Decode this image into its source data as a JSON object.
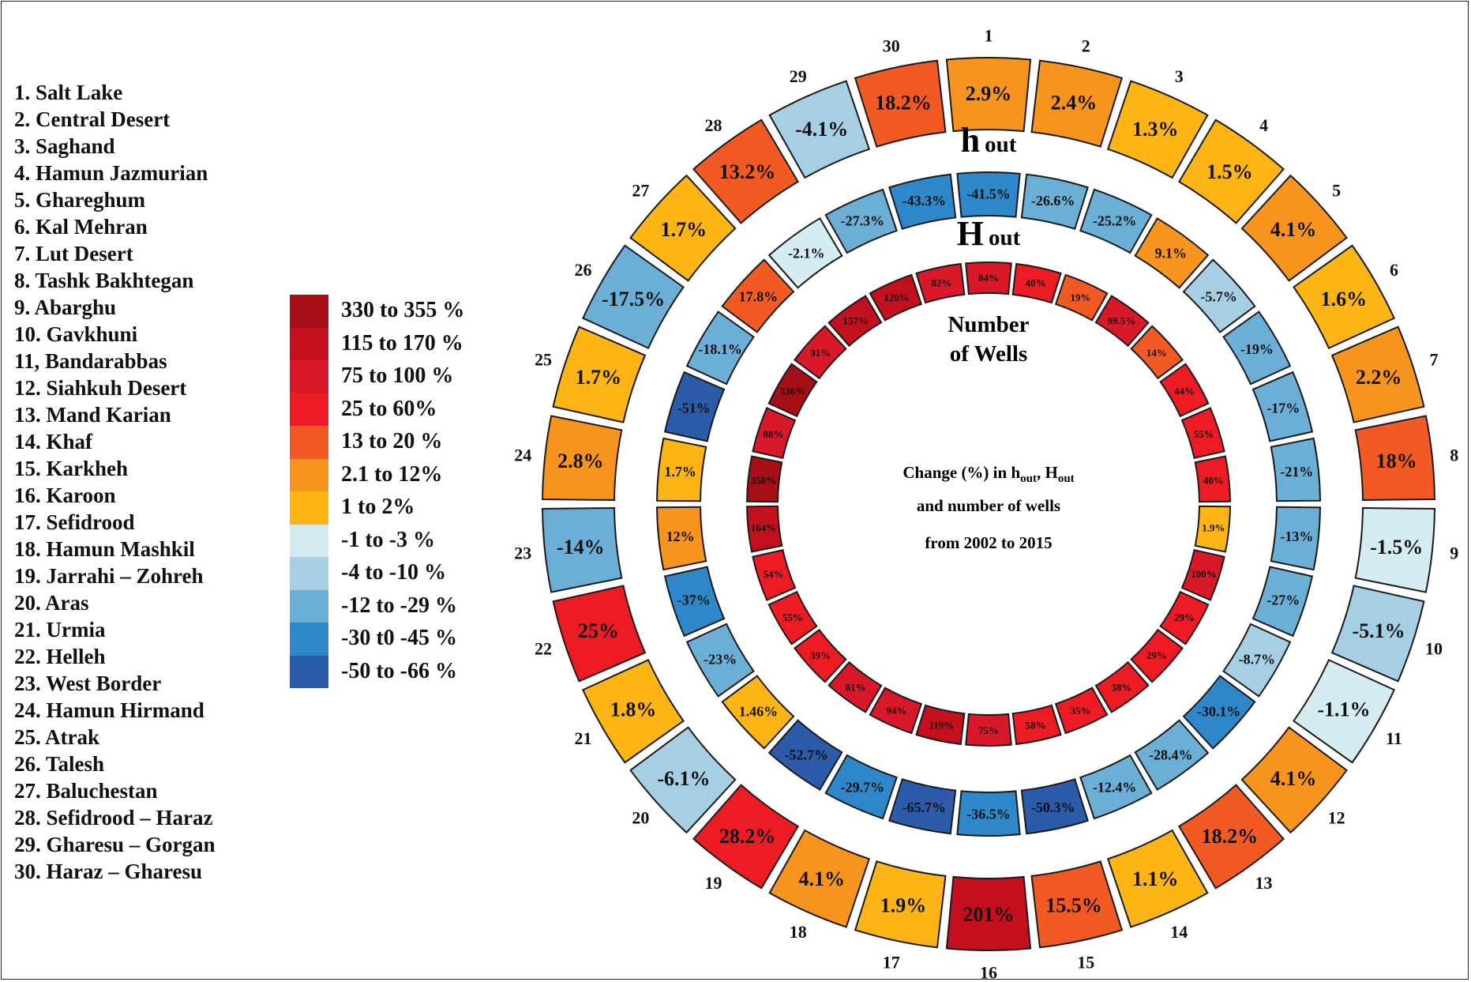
{
  "basins": [
    "1. Salt Lake",
    "2. Central Desert",
    "3. Saghand",
    "4. Hamun Jazmurian",
    "5. Ghareghum",
    "6. Kal Mehran",
    "7. Lut Desert",
    "8. Tashk Bakhtegan",
    "9. Abarghu",
    "10. Gavkhuni",
    "11, Bandarabbas",
    "12. Siahkuh Desert",
    "13. Mand Karian",
    "14. Khaf",
    "15. Karkheh",
    "16. Karoon",
    "17. Sefidrood",
    "18. Hamun Mashkil",
    "19. Jarrahi – Zohreh",
    "20. Aras",
    "21. Urmia",
    "22. Helleh",
    "23. West Border",
    "24. Hamun Hirmand",
    "25. Atrak",
    "26. Talesh",
    "27. Baluchestan",
    "28. Sefidrood – Haraz",
    "29. Gharesu – Gorgan",
    "30. Haraz – Gharesu"
  ],
  "legend": [
    {
      "label": "330 to 355 %",
      "color": "#a50f15"
    },
    {
      "label": "115 to 170 %",
      "color": "#c4101e"
    },
    {
      "label": "75 to 100 %",
      "color": "#d9182a"
    },
    {
      "label": "25 to 60%",
      "color": "#ed1c24"
    },
    {
      "label": "13 to 20 %",
      "color": "#f15a22"
    },
    {
      "label": "2.1 to 12%",
      "color": "#f7941d"
    },
    {
      "label": "1 to 2%",
      "color": "#fdb515"
    },
    {
      "label": "-1 to -3 %",
      "color": "#d6ecf3"
    },
    {
      "label": "-4 to -10 %",
      "color": "#a6cfe3"
    },
    {
      "label": "-12 to -29 %",
      "color": "#6baed6"
    },
    {
      "label": "-30 t0 -45 %",
      "color": "#2d87c8"
    },
    {
      "label": "-50 to -66 %",
      "color": "#2b5ba9"
    }
  ],
  "sector_numbers": [
    "1",
    "2",
    "3",
    "4",
    "5",
    "6",
    "7",
    "8",
    "9",
    "10",
    "11",
    "12",
    "13",
    "14",
    "15",
    "16",
    "17",
    "18",
    "19",
    "20",
    "21",
    "22",
    "23",
    "24",
    "25",
    "26",
    "27",
    "28",
    "29",
    "30"
  ],
  "rings": {
    "h_out": {
      "title": "h",
      "subscript": "out",
      "values": [
        "2.9%",
        "2.4%",
        "1.3%",
        "1.5%",
        "4.1%",
        "1.6%",
        "2.2%",
        "18%",
        "-1.5%",
        "-5.1%",
        "-1.1%",
        "4.1%",
        "18.2%",
        "1.1%",
        "15.5%",
        "201%",
        "1.9%",
        "4.1%",
        "28.2%",
        "-6.1%",
        "1.8%",
        "25%",
        "-14%",
        "2.8%",
        "1.7%",
        "-17.5%",
        "1.7%",
        "13.2%",
        "-4.1%",
        "18.2%"
      ]
    },
    "H_out": {
      "title": "H",
      "subscript": "out",
      "values": [
        "-41.5%",
        "-26.6%",
        "-25.2%",
        "9.1%",
        "-5.7%",
        "-19%",
        "-17%",
        "-21%",
        "-13%",
        "-27%",
        "-8.7%",
        "-30.1%",
        "-28.4%",
        "-12.4%",
        "-50.3%",
        "-36.5%",
        "-65.7%",
        "-29.7%",
        "-52.7%",
        "1.46%",
        "-23%",
        "-37%",
        "12%",
        "1.7%",
        "-51%",
        "-18.1%",
        "17.8%",
        "-2.1%",
        "-27.3%",
        "-43.3%"
      ]
    },
    "wells": {
      "title_line1": "Number",
      "title_line2": "of Wells",
      "values": [
        "84%",
        "40%",
        "19%",
        "99.5%",
        "14%",
        "44%",
        "55%",
        "40%",
        "1.9%",
        "100%",
        "29%",
        "29%",
        "38%",
        "35%",
        "58%",
        "75%",
        "119%",
        "94%",
        "81%",
        "39%",
        "55%",
        "54%",
        "164%",
        "350%",
        "88%",
        "336%",
        "91%",
        "157%",
        "120%",
        "82%"
      ]
    }
  },
  "center_caption": {
    "line1_prefix": "Change (%) in h",
    "line1_sub1": "out",
    "line1_mid": ", H",
    "line1_sub2": "out",
    "line2": "and number of wells",
    "line3": "from 2002 to 2015"
  }
}
